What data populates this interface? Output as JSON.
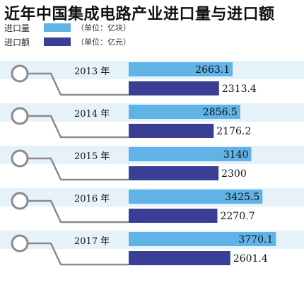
{
  "title": "近年中国集成电路产业进口量与进口额",
  "legend": [
    {
      "name": "进口量",
      "unit": "（单位：亿块）",
      "color": "#5fb3e6"
    },
    {
      "name": "进口额",
      "unit": "（单位：亿元）",
      "color": "#3a3f96"
    }
  ],
  "colors": {
    "band": "#e6f2fa",
    "line": "#8a8a8a"
  },
  "chart_data": {
    "type": "bar",
    "orientation": "horizontal",
    "categories": [
      "2013 年",
      "2014 年",
      "2015 年",
      "2016 年",
      "2017 年"
    ],
    "series": [
      {
        "name": "进口量",
        "values": [
          2663.1,
          2856.5,
          3140,
          3425.5,
          3770.1
        ],
        "labels": [
          "2663.1",
          "2856.5",
          "3140",
          "3425.5",
          "3770.1"
        ]
      },
      {
        "name": "进口额",
        "values": [
          2313.4,
          2176.2,
          2300,
          2270.7,
          2601.4
        ],
        "labels": [
          "2313.4",
          "2176.2",
          "2300",
          "2270.7",
          "2601.4"
        ]
      }
    ],
    "xlim": [
      0,
      3800
    ],
    "grid": false
  }
}
